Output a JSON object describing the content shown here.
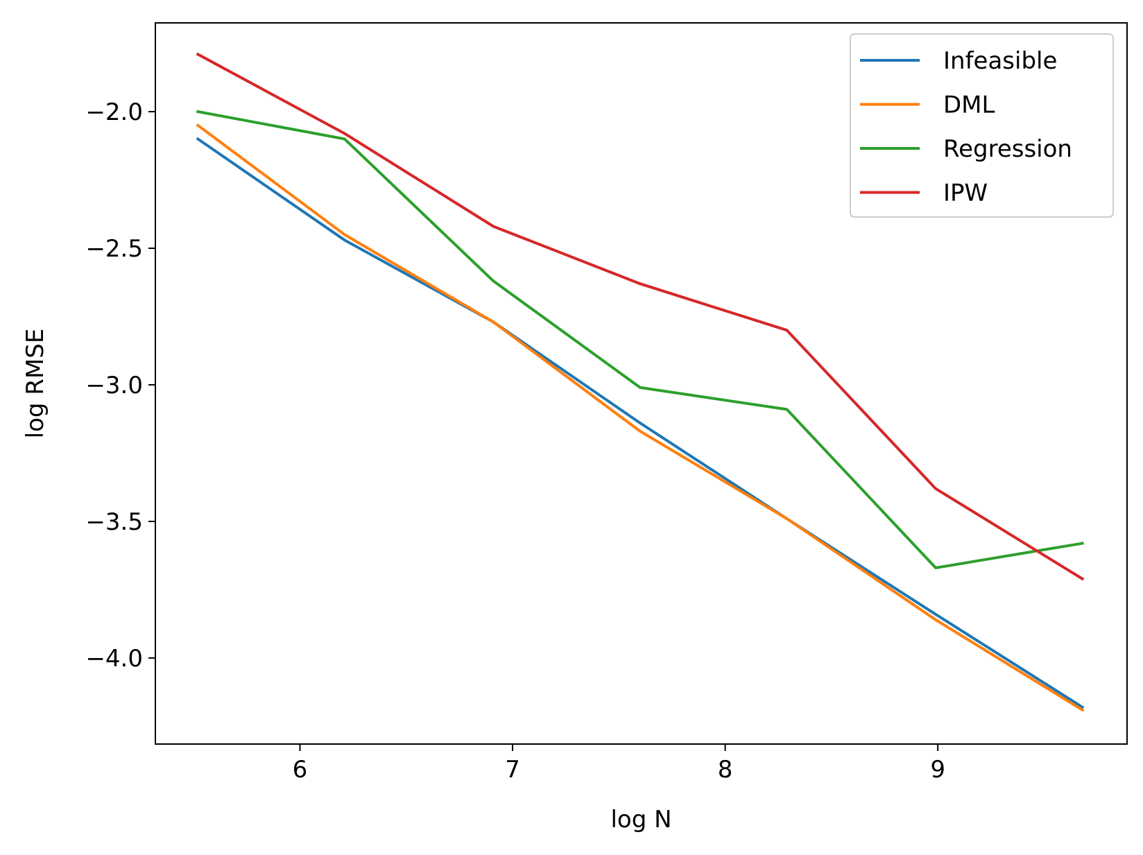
{
  "chart_data": {
    "type": "line",
    "xlabel": "log N",
    "ylabel": "log RMSE",
    "xlim": [
      5.32,
      9.89
    ],
    "ylim": [
      -4.315,
      -1.675
    ],
    "xticks": [
      6,
      7,
      8,
      9
    ],
    "xtick_labels": [
      "6",
      "7",
      "8",
      "9"
    ],
    "yticks": [
      -2.0,
      -2.5,
      -3.0,
      -3.5,
      -4.0
    ],
    "ytick_labels": [
      "−2.0",
      "−2.5",
      "−3.0",
      "−3.5",
      "−4.0"
    ],
    "grid": false,
    "legend_position": "top-right",
    "x": [
      5.52,
      6.21,
      6.91,
      7.6,
      8.29,
      8.99,
      9.68
    ],
    "series": [
      {
        "name": "Infeasible",
        "color": "#1f77b4",
        "values": [
          -2.1,
          -2.47,
          -2.77,
          -3.14,
          -3.49,
          -3.84,
          -4.18
        ]
      },
      {
        "name": "DML",
        "color": "#ff7f0e",
        "values": [
          -2.05,
          -2.45,
          -2.77,
          -3.17,
          -3.49,
          -3.86,
          -4.19
        ]
      },
      {
        "name": "Regression",
        "color": "#2ca02c",
        "values": [
          -2.0,
          -2.1,
          -2.62,
          -3.01,
          -3.09,
          -3.67,
          -3.58
        ]
      },
      {
        "name": "IPW",
        "color": "#d62728",
        "values": [
          -1.79,
          -2.08,
          -2.42,
          -2.63,
          -2.8,
          -3.38,
          -3.71
        ]
      }
    ]
  }
}
